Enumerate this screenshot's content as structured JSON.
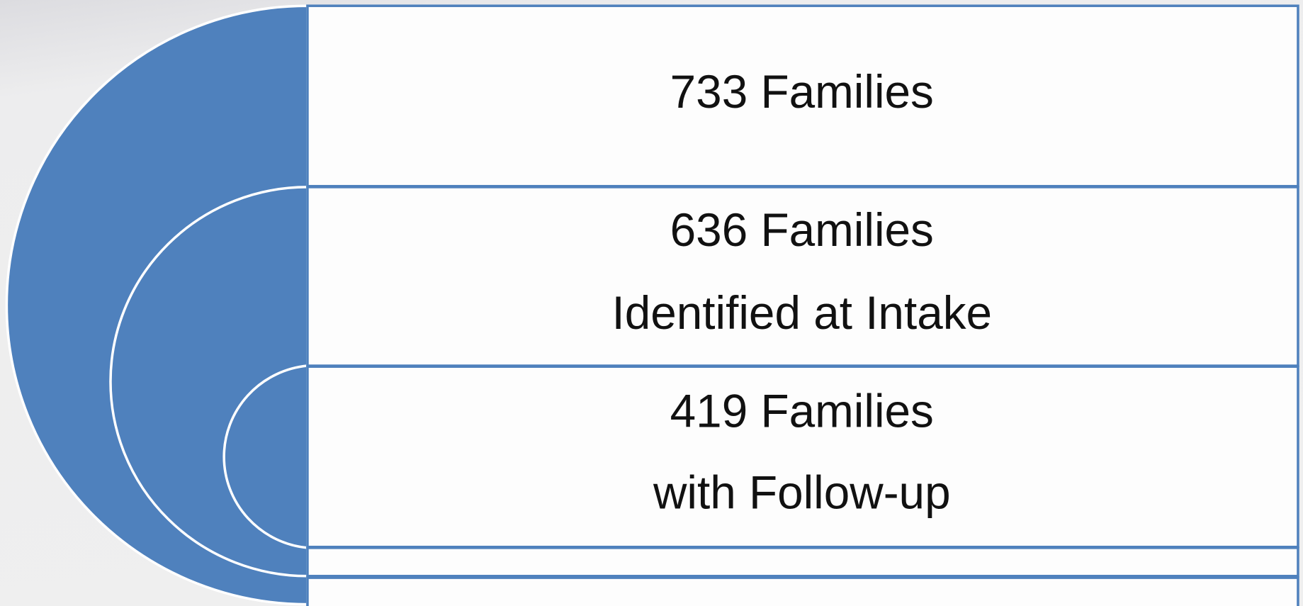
{
  "nodes": [
    {
      "lines": [
        "733 Families"
      ]
    },
    {
      "lines": [
        "636 Families",
        "Identified at Intake"
      ]
    },
    {
      "lines": [
        "419 Families",
        "with Follow-up"
      ]
    }
  ]
}
